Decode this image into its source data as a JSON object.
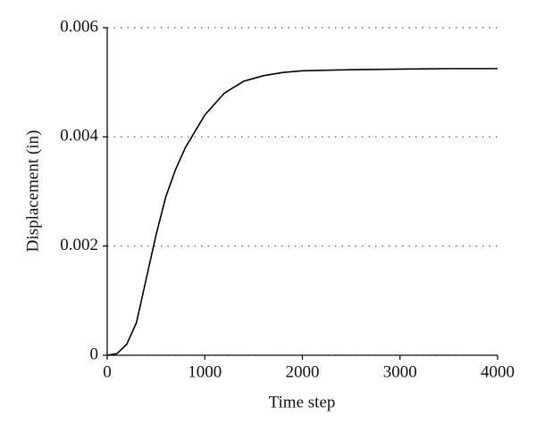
{
  "chart_data": {
    "type": "line",
    "xlabel": "Time step",
    "ylabel": "Displacement (in)",
    "x": [
      0,
      100,
      200,
      300,
      400,
      500,
      600,
      700,
      800,
      900,
      1000,
      1200,
      1400,
      1600,
      1800,
      2000,
      2500,
      3000,
      3500,
      4000
    ],
    "series": [
      {
        "color": "#000000",
        "values": [
          0,
          3e-05,
          0.0002,
          0.0006,
          0.0014,
          0.0022,
          0.0029,
          0.0034,
          0.0038,
          0.0041,
          0.0044,
          0.0048,
          0.00502,
          0.00512,
          0.00518,
          0.00521,
          0.00523,
          0.00524,
          0.00525,
          0.00525
        ]
      }
    ],
    "xlim": [
      0,
      4000
    ],
    "xticks": [
      0,
      1000,
      2000,
      3000,
      4000
    ],
    "ylim": [
      0,
      0.006
    ],
    "yticks": [
      0,
      0.002,
      0.004,
      0.006
    ],
    "grid": true
  }
}
